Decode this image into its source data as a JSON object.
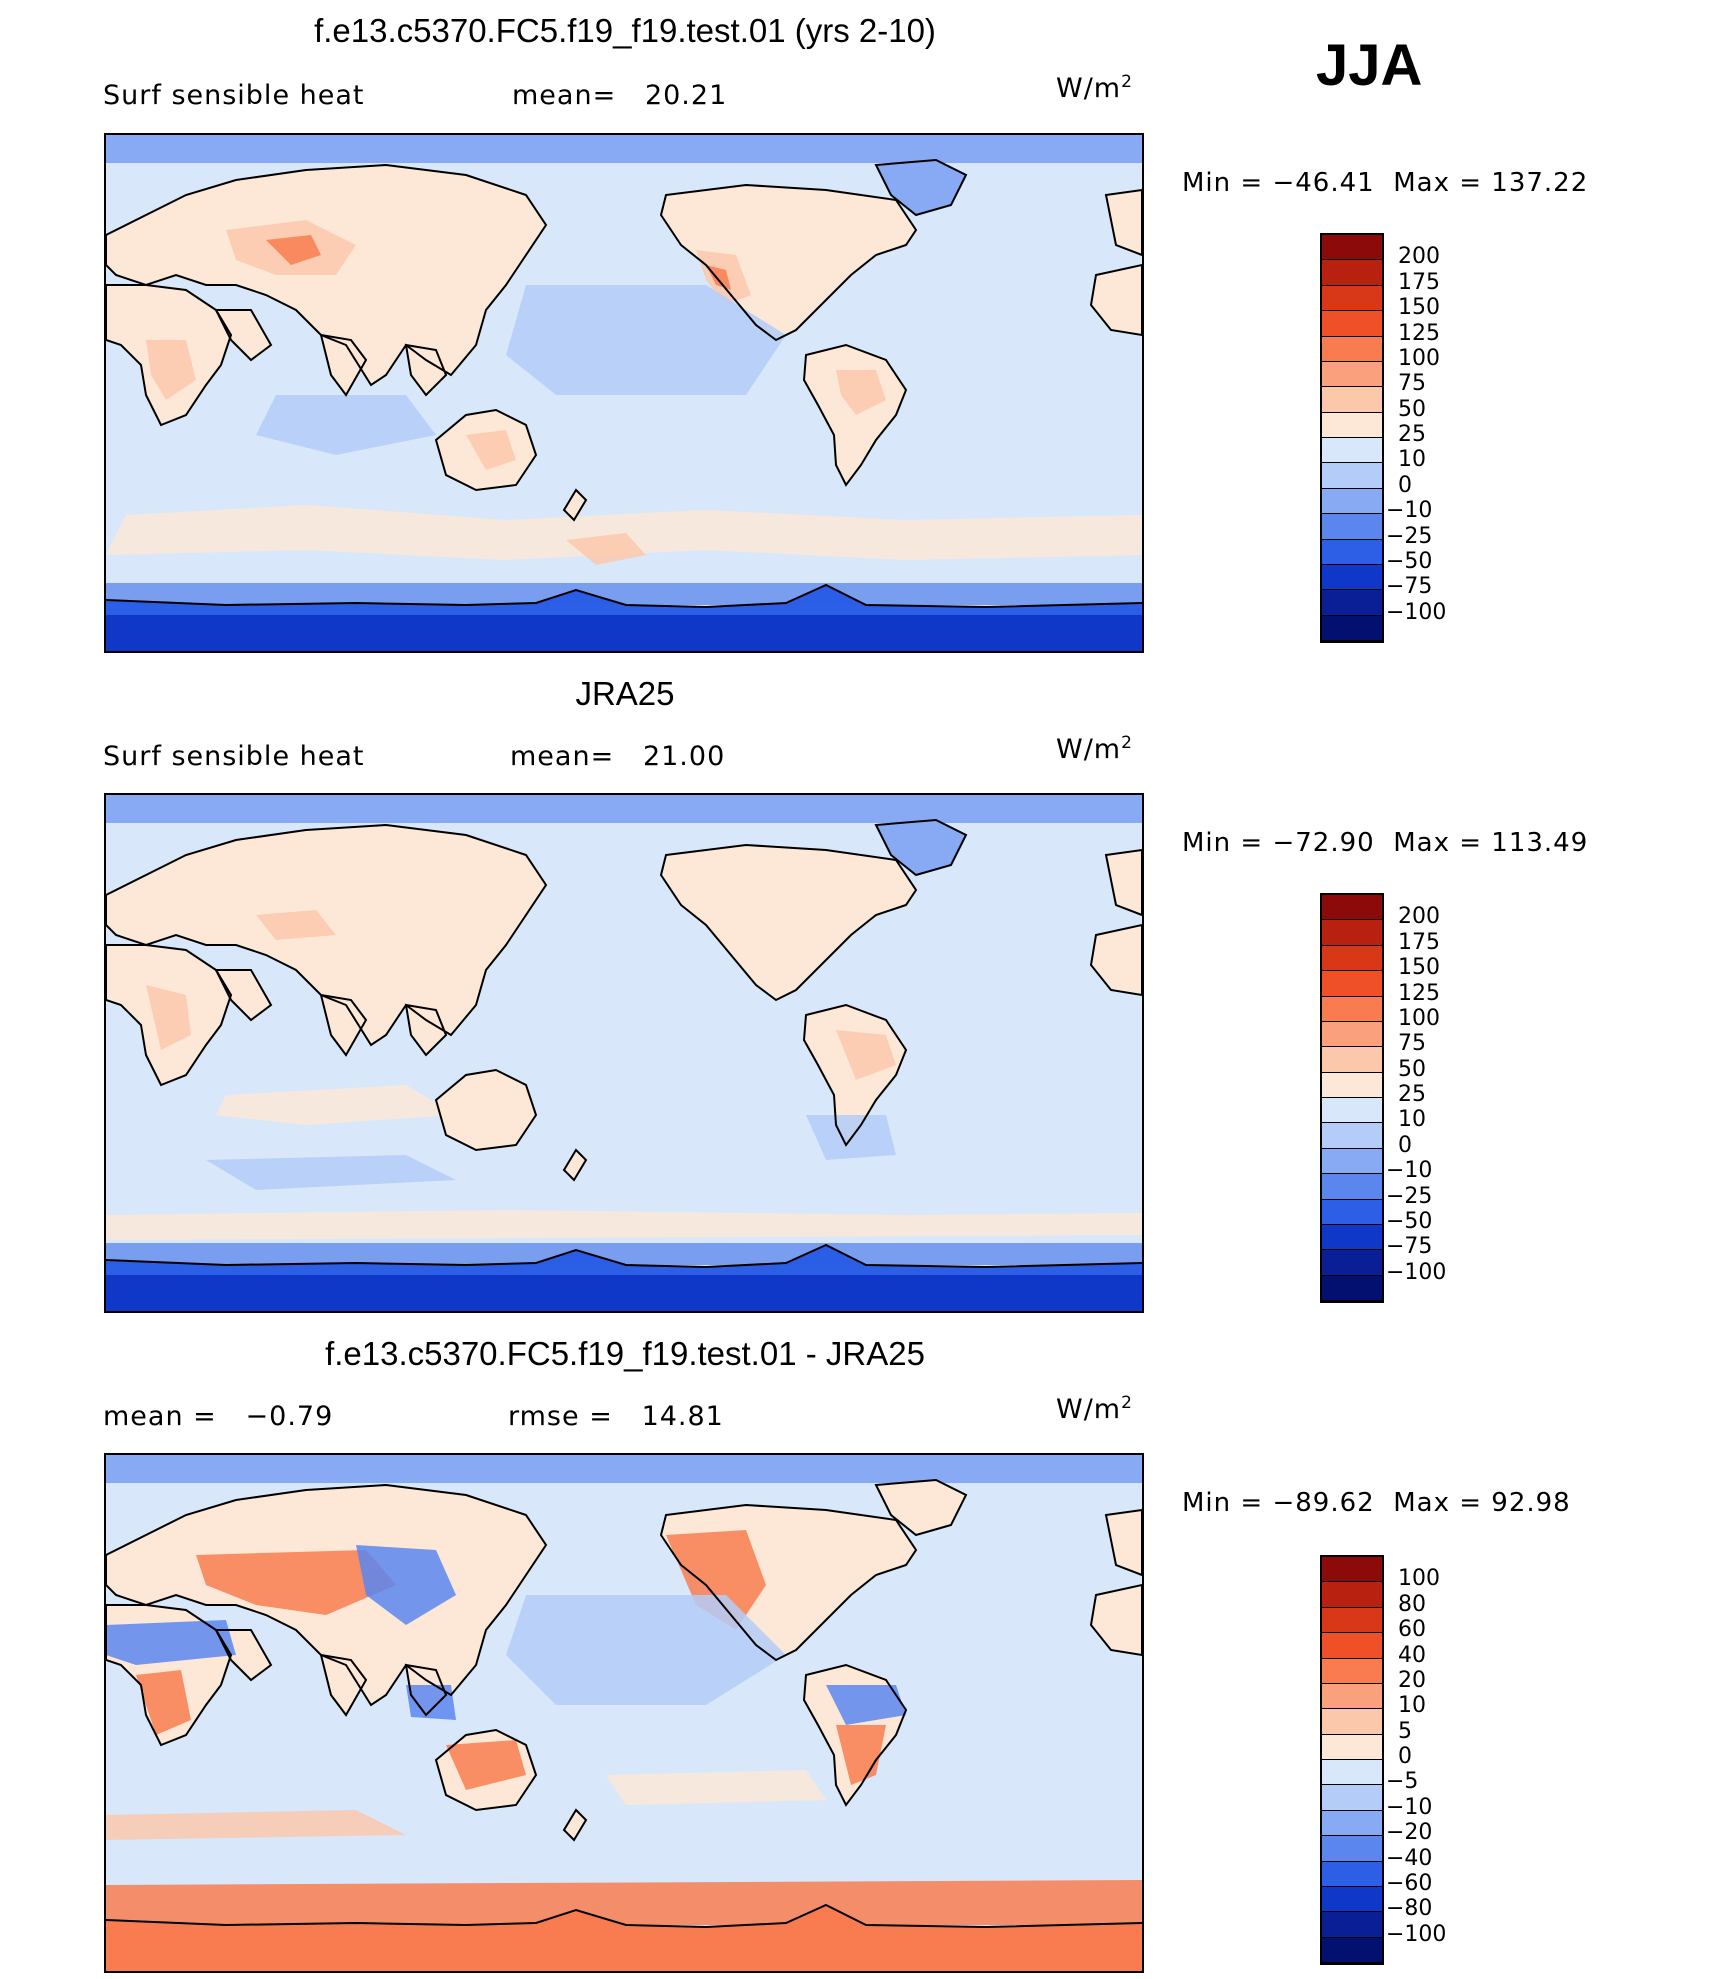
{
  "season": "JJA",
  "panels": [
    {
      "title": "f.e13.c5370.FC5.f19_f19.test.01 (yrs 2-10)",
      "left_label": "Surf  sensible  heat",
      "stat_label": "mean=",
      "stat_value": "20.21",
      "units_base": "W/m",
      "units_exp": "2",
      "min_label": "Min  =",
      "min_value": "−46.41",
      "max_label": "Max  =",
      "max_value": "137.22",
      "legend_levels": [
        "200",
        "175",
        "150",
        "125",
        "100",
        "75",
        "50",
        "25",
        "10",
        "0",
        "−10",
        "−25",
        "−50",
        "−75",
        "−100"
      ],
      "legend_colors": [
        "#8c0a0a",
        "#b82010",
        "#d83818",
        "#f05028",
        "#f87c50",
        "#faa07c",
        "#fcc8ac",
        "#fde8d8",
        "#d8e8fa",
        "#b4ccf8",
        "#88aaf4",
        "#5a86ee",
        "#2c5ee6",
        "#1038c8",
        "#0a1e96",
        "#041070"
      ]
    },
    {
      "title": "JRA25",
      "left_label": "Surf  sensible  heat",
      "stat_label": "mean=",
      "stat_value": "21.00",
      "units_base": "W/m",
      "units_exp": "2",
      "min_label": "Min  =",
      "min_value": "−72.90",
      "max_label": "Max  =",
      "max_value": "113.49",
      "legend_levels": [
        "200",
        "175",
        "150",
        "125",
        "100",
        "75",
        "50",
        "25",
        "10",
        "0",
        "−10",
        "−25",
        "−50",
        "−75",
        "−100"
      ],
      "legend_colors": [
        "#8c0a0a",
        "#b82010",
        "#d83818",
        "#f05028",
        "#f87c50",
        "#faa07c",
        "#fcc8ac",
        "#fde8d8",
        "#d8e8fa",
        "#b4ccf8",
        "#88aaf4",
        "#5a86ee",
        "#2c5ee6",
        "#1038c8",
        "#0a1e96",
        "#041070"
      ]
    },
    {
      "title": "f.e13.c5370.FC5.f19_f19.test.01 - JRA25",
      "left_label": "mean  =",
      "left_value": "−0.79",
      "stat_label": "rmse  =",
      "stat_value": "14.81",
      "units_base": "W/m",
      "units_exp": "2",
      "min_label": "Min  =",
      "min_value": "−89.62",
      "max_label": "Max  =",
      "max_value": "92.98",
      "legend_levels": [
        "100",
        "80",
        "60",
        "40",
        "20",
        "10",
        "5",
        "0",
        "−5",
        "−10",
        "−20",
        "−40",
        "−60",
        "−80",
        "−100"
      ],
      "legend_colors": [
        "#8c0a0a",
        "#b82010",
        "#d83818",
        "#f05028",
        "#f87c50",
        "#faa07c",
        "#fcc8ac",
        "#fde8d8",
        "#d8e8fa",
        "#b4ccf8",
        "#88aaf4",
        "#5a86ee",
        "#2c5ee6",
        "#1038c8",
        "#0a1e96",
        "#041070"
      ]
    }
  ],
  "map_colors": {
    "ocean": "#d8e8fa",
    "ocean_cool": "#b4ccf8",
    "arctic": "#88aaf4",
    "antarctic": "#2c5ee6",
    "antarctic_deep": "#1038c8",
    "land_warm": "#fde8d8",
    "land_hot": "#fcc8ac",
    "land_hotter": "#f87c50",
    "diff_pos": "#f87c50",
    "diff_neg": "#5a86ee",
    "coast": "#000000"
  }
}
